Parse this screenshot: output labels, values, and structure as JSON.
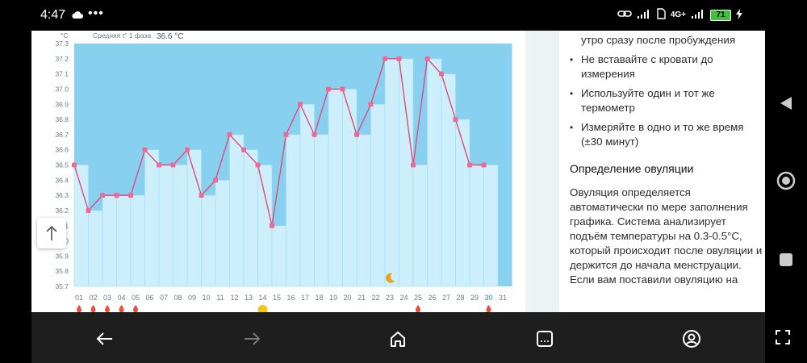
{
  "status": {
    "time": "4:47",
    "battery": "71",
    "network": "4G+"
  },
  "chart": {
    "y_unit": "°C",
    "legend_label": "Средняя t° 1 фаза",
    "legend_value": "36.6 °C",
    "colors": {
      "bg_high": "#88d0ef",
      "bar": "#cdeefb",
      "bar_stroke": "#9fdcf3",
      "line": "#e04b79",
      "marker": "#ee6a93"
    }
  },
  "chart_data": {
    "type": "bar",
    "ylim": [
      35.7,
      37.3
    ],
    "yticks": [
      "37.3",
      "37.2",
      "37.1",
      "37.0",
      "36.9",
      "36.8",
      "36.7",
      "36.6",
      "36.5",
      "36.4",
      "36.3",
      "36.2",
      "36.1",
      "36.0",
      "35.9",
      "35.8",
      "35.7"
    ],
    "categories": [
      "01",
      "02",
      "03",
      "04",
      "05",
      "06",
      "07",
      "08",
      "09",
      "10",
      "11",
      "12",
      "13",
      "14",
      "15",
      "16",
      "17",
      "18",
      "19",
      "20",
      "21",
      "22",
      "23",
      "24",
      "25",
      "26",
      "27",
      "28",
      "29",
      "30",
      "31"
    ],
    "values": [
      36.5,
      36.2,
      36.3,
      36.3,
      36.3,
      36.6,
      36.5,
      36.5,
      36.6,
      36.3,
      36.4,
      36.7,
      36.6,
      36.5,
      36.1,
      36.7,
      36.9,
      36.7,
      37.0,
      37.0,
      36.7,
      36.9,
      37.2,
      37.2,
      36.5,
      37.2,
      37.1,
      36.8,
      36.5,
      36.5,
      null
    ],
    "highlighted_day": "30",
    "menstruation_days": [
      "01",
      "02",
      "03",
      "04",
      "05",
      "25",
      "30"
    ],
    "ovulation_sun_day": "14",
    "moon_day": "23"
  },
  "article": {
    "items": [
      "утро сразу после пробуждения",
      "Не вставайте с кровати до измерения",
      "Используйте один и тот же термометр",
      "Измеряйте в одно и то же время (±30 минут)"
    ],
    "heading": "Определение овуляции",
    "paragraph1": "Овуляция определяется автоматически по мере заполнения графика. Система анализирует подъём температуры на 0.3-0.5°C, который происходит после овуляции и держится до начала менструации.",
    "paragraph2": "Если вам поставили овуляцию на"
  },
  "icons": {
    "scroll_top": "arrow-up-icon",
    "back": "arrow-left-icon",
    "forward": "arrow-right-icon",
    "home": "home-icon",
    "tabs": "tabs-icon",
    "profile": "profile-icon",
    "fullscreen": "fullscreen-icon"
  }
}
